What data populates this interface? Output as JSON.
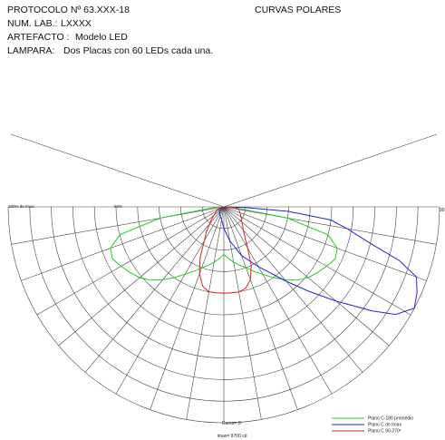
{
  "header": {
    "protocolo": "PROTOCOLO Nº 63.XXX-18",
    "num_lab_label": "NUM. LAB.:",
    "num_lab_value": "LXXXX",
    "artefacto_label": "ARTEFACTO :",
    "artefacto_value": "Modelo LED",
    "lampara_label": "LAMPARA:",
    "lampara_value": "Dos Placas con 60 LEDs cada una.",
    "title": "CURVAS POLARES"
  },
  "chart_data": {
    "type": "line",
    "title": "CURVAS POLARES",
    "angular_axis": {
      "unit": "deg",
      "range": [
        -90,
        90
      ],
      "spoke_step": 10,
      "right_end_label": "90"
    },
    "radial_axis": {
      "unit": "% de Imax",
      "rings": [
        10,
        20,
        30,
        40,
        50,
        60,
        70,
        80,
        90,
        100
      ],
      "labels": {
        "r100": "100% de Imax",
        "r50": "50%"
      }
    },
    "gamma_label": "Gama= 0º",
    "imax_label": "Imax= 9700 cd",
    "series": [
      {
        "name": "Plano C-180 promedio",
        "color": "#22cc22",
        "points": [
          [
            -90,
            0
          ],
          [
            -85,
            5
          ],
          [
            -80,
            30
          ],
          [
            -75,
            50
          ],
          [
            -70,
            56
          ],
          [
            -65,
            57
          ],
          [
            -60,
            55
          ],
          [
            -55,
            53
          ],
          [
            -50,
            51
          ],
          [
            -45,
            48
          ],
          [
            -40,
            44
          ],
          [
            -35,
            40
          ],
          [
            -30,
            36
          ],
          [
            -25,
            33
          ],
          [
            -20,
            30
          ],
          [
            -15,
            28
          ],
          [
            -10,
            26
          ],
          [
            -5,
            24
          ],
          [
            0,
            22
          ],
          [
            5,
            24
          ],
          [
            10,
            26
          ],
          [
            15,
            28
          ],
          [
            20,
            30
          ],
          [
            25,
            33
          ],
          [
            30,
            36
          ],
          [
            35,
            40
          ],
          [
            40,
            44
          ],
          [
            45,
            48
          ],
          [
            50,
            51
          ],
          [
            55,
            53
          ],
          [
            60,
            55
          ],
          [
            65,
            57
          ],
          [
            70,
            56
          ],
          [
            75,
            50
          ],
          [
            80,
            30
          ],
          [
            85,
            5
          ],
          [
            90,
            0
          ]
        ]
      },
      {
        "name": "Plano C de Imax",
        "color": "#2222dd",
        "points": [
          [
            -90,
            0
          ],
          [
            -60,
            2
          ],
          [
            -30,
            4
          ],
          [
            -10,
            6
          ],
          [
            0,
            10
          ],
          [
            10,
            16
          ],
          [
            20,
            24
          ],
          [
            30,
            32
          ],
          [
            40,
            45
          ],
          [
            45,
            55
          ],
          [
            50,
            68
          ],
          [
            55,
            84
          ],
          [
            58,
            94
          ],
          [
            62,
            100
          ],
          [
            66,
            98
          ],
          [
            70,
            95
          ],
          [
            73,
            85
          ],
          [
            76,
            70
          ],
          [
            80,
            58
          ],
          [
            83,
            50
          ],
          [
            86,
            30
          ],
          [
            88,
            10
          ],
          [
            90,
            0
          ]
        ]
      },
      {
        "name": "Plano C 90-270º",
        "color": "#dd2222",
        "points": [
          [
            -90,
            0
          ],
          [
            -75,
            2
          ],
          [
            -60,
            4
          ],
          [
            -45,
            8
          ],
          [
            -35,
            14
          ],
          [
            -25,
            26
          ],
          [
            -20,
            33
          ],
          [
            -15,
            38
          ],
          [
            -10,
            40
          ],
          [
            -5,
            40
          ],
          [
            0,
            40
          ],
          [
            5,
            40
          ],
          [
            10,
            40
          ],
          [
            15,
            39
          ],
          [
            20,
            36
          ],
          [
            25,
            30
          ],
          [
            30,
            22
          ],
          [
            40,
            14
          ],
          [
            55,
            10
          ],
          [
            70,
            8
          ],
          [
            80,
            7
          ],
          [
            87,
            5
          ],
          [
            90,
            0
          ]
        ]
      }
    ],
    "legend": {
      "placement": "bottom-right"
    }
  }
}
